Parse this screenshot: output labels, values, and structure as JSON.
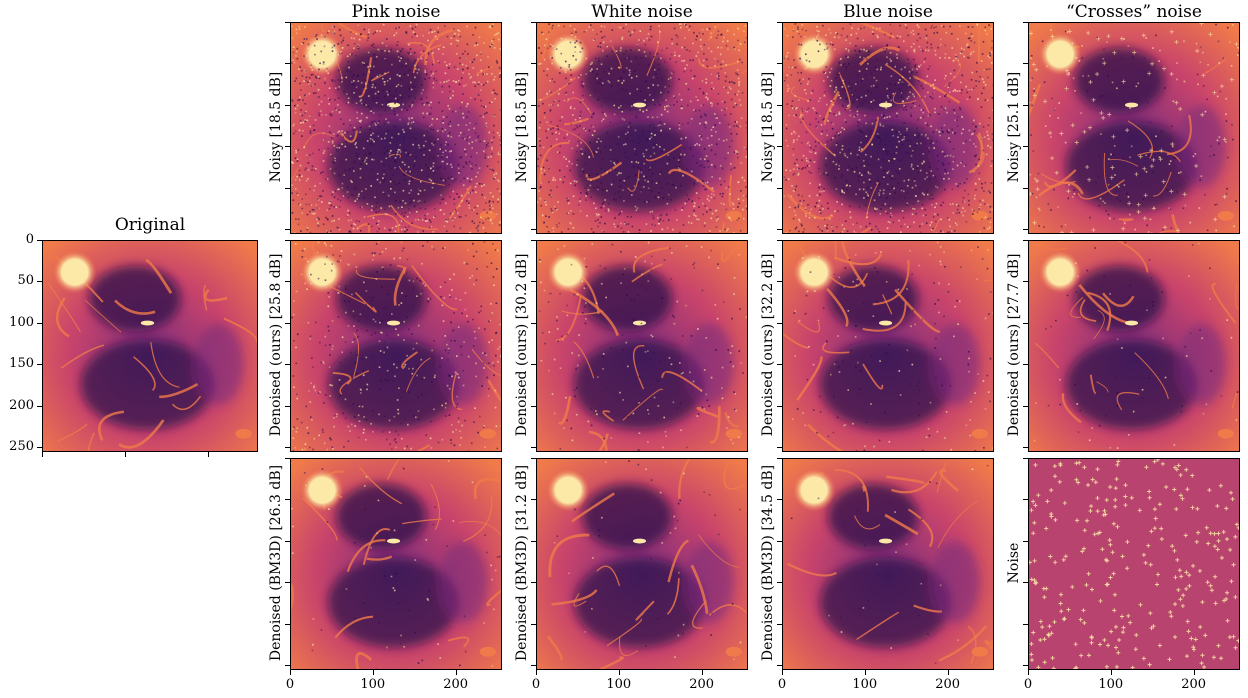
{
  "original": {
    "title": "Original",
    "y_ticks": [
      "0",
      "50",
      "100",
      "150",
      "200",
      "250"
    ]
  },
  "columns": [
    {
      "title": "Pink noise"
    },
    {
      "title": "White noise"
    },
    {
      "title": "Blue noise"
    },
    {
      "title": "“Crosses” noise"
    }
  ],
  "row_labels": {
    "noisy": [
      "Noisy [18.5 dB]",
      "Noisy [18.5 dB]",
      "Noisy [18.5 dB]",
      "Noisy [25.1 dB]"
    ],
    "ours": [
      "Denoised (ours) [25.8 dB]",
      "Denoised (ours) [30.2 dB]",
      "Denoised (ours) [32.2 dB]",
      "Denoised (ours) [27.7 dB]"
    ],
    "bm3d": [
      "Denoised (BM3D) [26.3 dB]",
      "Denoised (BM3D) [31.2 dB]",
      "Denoised (BM3D) [34.5 dB]",
      "Noise"
    ]
  },
  "x_ticks": [
    "0",
    "100",
    "200"
  ],
  "colors": {
    "dark": "#2b0a4a",
    "mid": "#7a2c7c",
    "warm": "#c9446b",
    "hot": "#f07a4a",
    "bright": "#fce9a8",
    "noise_bg": "#b8436e"
  }
}
